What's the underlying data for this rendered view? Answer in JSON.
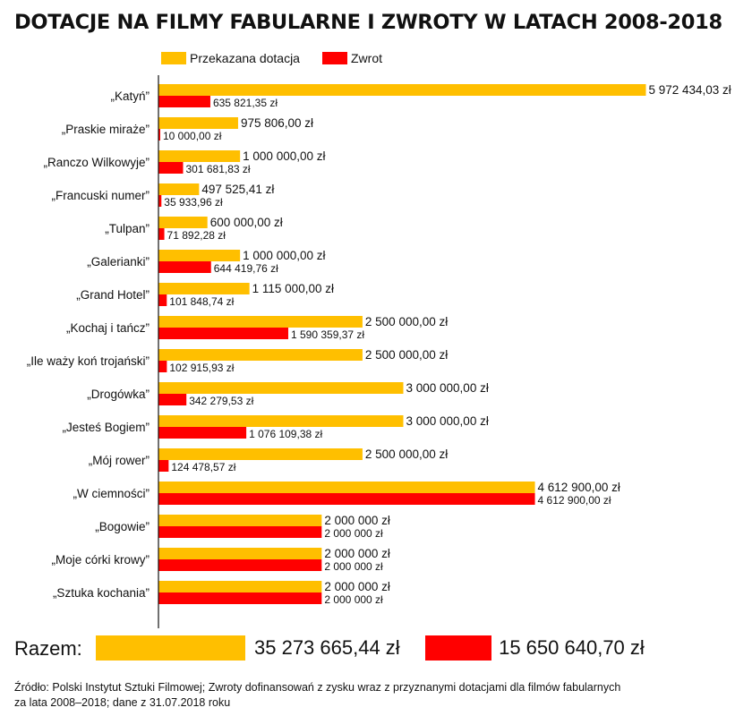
{
  "title": "DOTACJE NA FILMY FABULARNE I ZWROTY W LATACH 2008-2018",
  "colors": {
    "grant": "#FFBF00",
    "refund": "#FF0000",
    "axis": "#111111"
  },
  "legend": {
    "grant": "Przekazana dotacja",
    "refund": "Zwrot"
  },
  "chart_data": {
    "type": "bar",
    "orientation": "horizontal",
    "categories": [
      "„Katyń”",
      "„Praskie miraże”",
      "„Ranczo Wilkowyje”",
      "„Francuski numer”",
      "„Tulpan”",
      "„Galerianki”",
      "„Grand Hotel”",
      "„Kochaj i tańcz”",
      "„Ile waży koń trojański”",
      "„Drogówka”",
      "„Jesteś Bogiem”",
      "„Mój rower”",
      "„W ciemności”",
      "„Bogowie”",
      "„Moje córki krowy”",
      "„Sztuka kochania”"
    ],
    "series": [
      {
        "name": "Przekazana dotacja",
        "values": [
          5972434.03,
          975806.0,
          1000000.0,
          497525.41,
          600000.0,
          1000000.0,
          1115000.0,
          2500000.0,
          2500000.0,
          3000000.0,
          3000000.0,
          2500000.0,
          4612900.0,
          2000000,
          2000000,
          2000000
        ],
        "labels": [
          "5 972 434,03 zł",
          "975 806,00 zł",
          "1 000 000,00 zł",
          "497 525,41 zł",
          "600 000,00 zł",
          "1 000 000,00 zł",
          "1 115 000,00 zł",
          "2 500 000,00 zł",
          "2 500 000,00 zł",
          "3 000 000,00 zł",
          "3 000 000,00 zł",
          "2 500 000,00 zł",
          "4 612 900,00 zł",
          "2 000 000 zł",
          "2 000 000 zł",
          "2 000 000 zł"
        ]
      },
      {
        "name": "Zwrot",
        "values": [
          635821.35,
          10000.0,
          301681.83,
          35933.96,
          71892.28,
          644419.76,
          101848.74,
          1590359.37,
          102915.93,
          342279.53,
          1076109.38,
          124478.57,
          4612900.0,
          2000000,
          2000000,
          2000000
        ],
        "labels": [
          "635 821,35 zł",
          "10 000,00 zł",
          "301 681,83 zł",
          "35 933,96 zł",
          "71 892,28 zł",
          "644 419,76 zł",
          "101 848,74 zł",
          "1 590 359,37 zł",
          "102 915,93 zł",
          "342 279,53 zł",
          "1 076 109,38 zł",
          "124 478,57 zł",
          "4 612 900,00 zł",
          "2 000 000 zł",
          "2 000 000 zł",
          "2 000 000 zł"
        ]
      }
    ],
    "xlim": [
      0,
      6000000
    ],
    "grid": false,
    "legend_position": "top"
  },
  "totals": {
    "label": "Razem:",
    "grant": 35273665.44,
    "refund": 15650640.7,
    "grant_label": "35 273 665,44 zł",
    "refund_label": "15 650 640,70 zł"
  },
  "source": {
    "line1": "Źródło: Polski Instytut Sztuki Filmowej; Zwroty dofinansowań z zysku wraz z przyznanymi dotacjami dla filmów fabularnych",
    "line2": "za lata 2008–2018; dane z 31.07.2018 roku"
  }
}
